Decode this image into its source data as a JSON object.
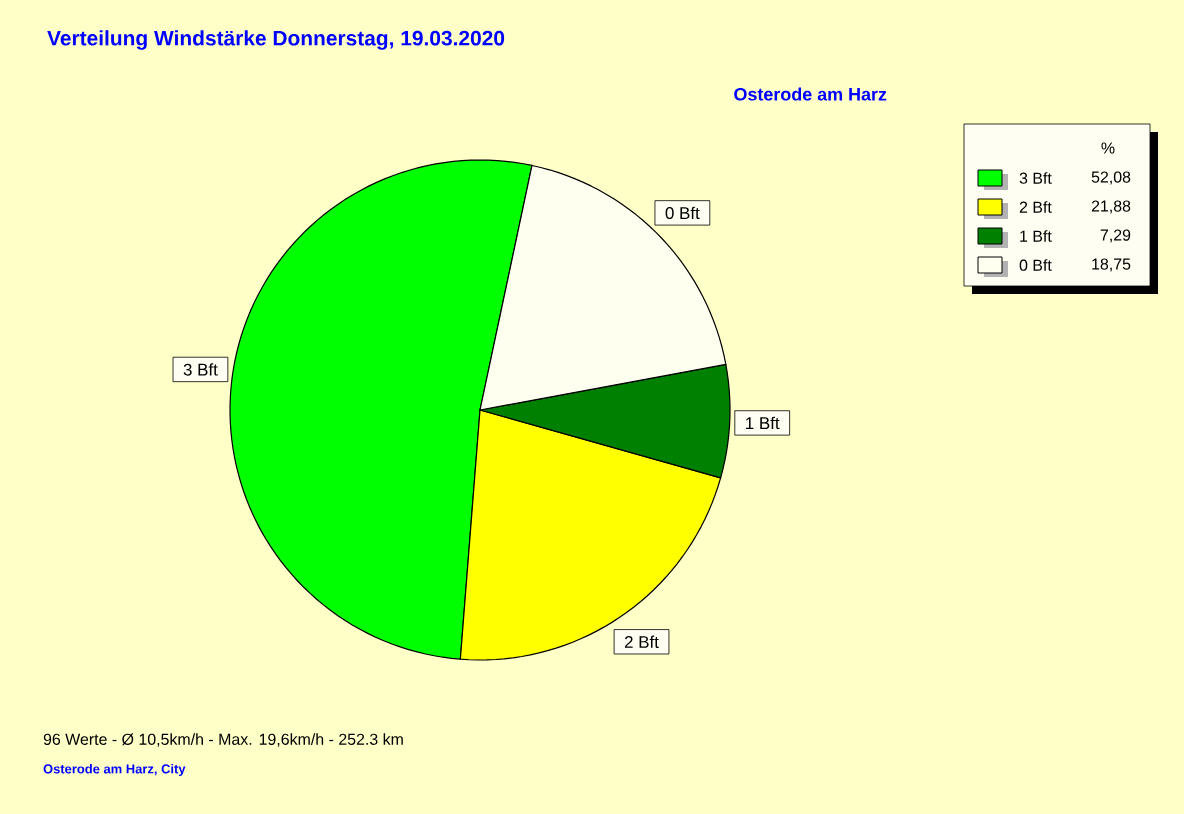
{
  "chart_data": {
    "type": "pie",
    "title": "Verteilung Windstärke  Donnerstag, 19.03.2020",
    "subtitle": "Osterode am Harz",
    "categories": [
      "3 Bft",
      "2 Bft",
      "1 Bft",
      "0 Bft"
    ],
    "values": [
      52.08,
      21.88,
      7.29,
      18.75
    ],
    "colors": [
      "#00ff00",
      "#ffff00",
      "#008000",
      "#fffff0"
    ],
    "value_labels": [
      "52,08",
      "21,88",
      "7,29",
      "18,75"
    ],
    "legend": "top right",
    "legend_title": "%",
    "annotations": [
      "96 Werte   -   Ø 10,5km/h  -  Max. 19,6km/h   -   252.3 km",
      "Osterode am Harz, City"
    ]
  }
}
